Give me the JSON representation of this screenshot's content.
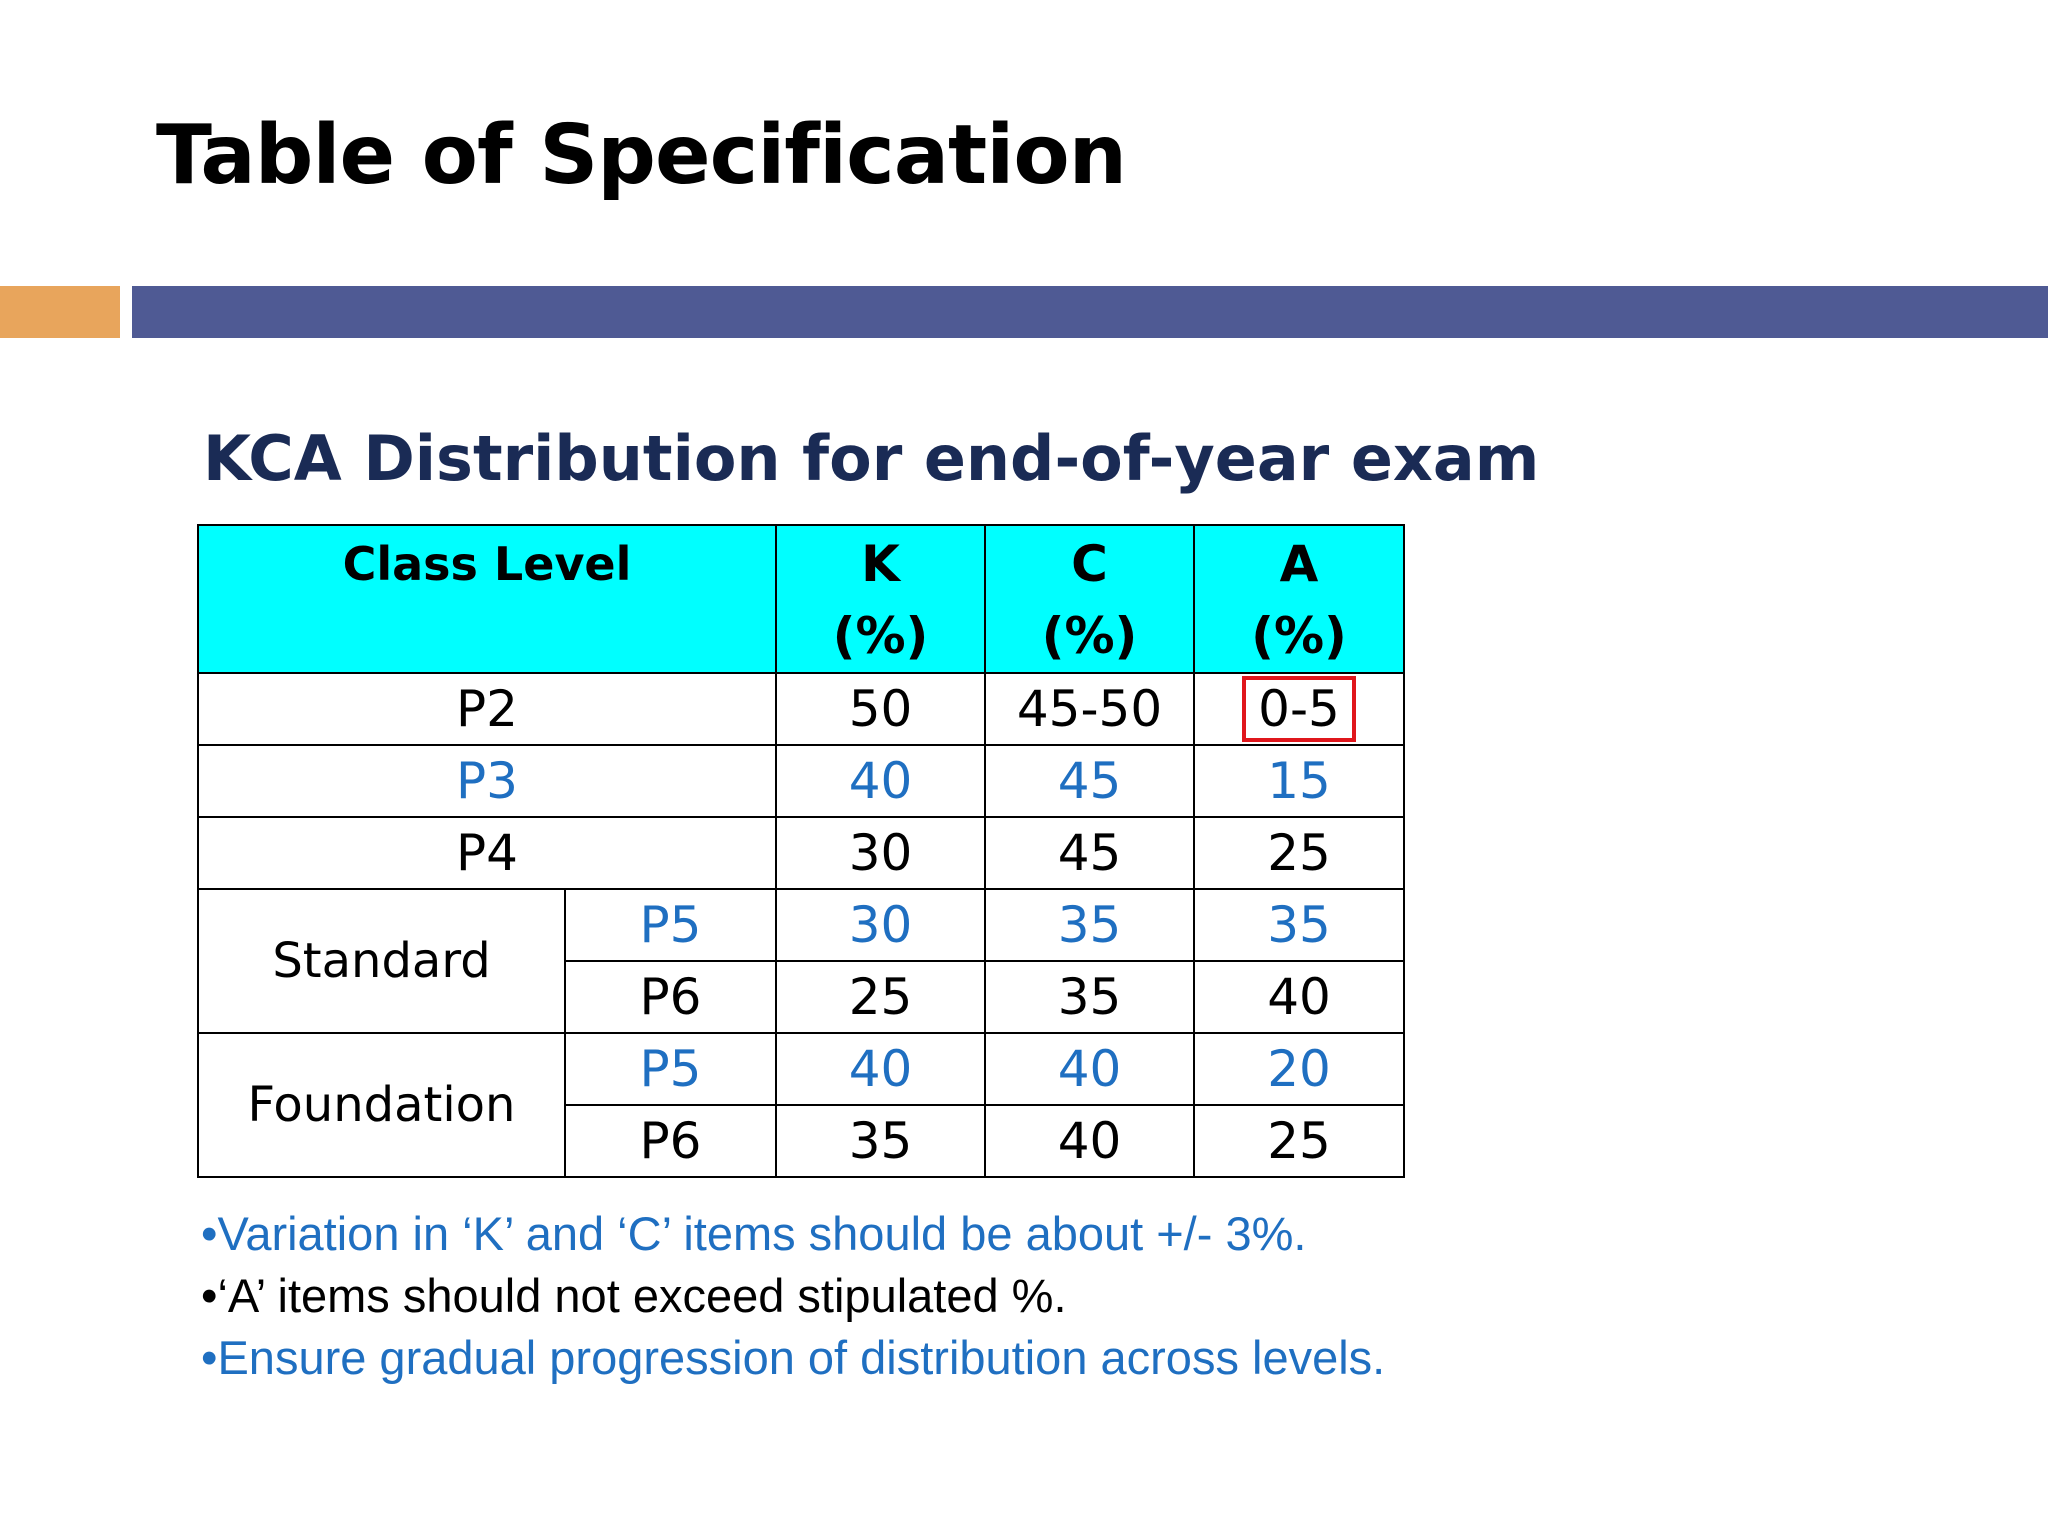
{
  "slide": {
    "title": "Table of Specification"
  },
  "colors": {
    "accent_bar": "#E8A55C",
    "main_bar": "#4F5A94",
    "table_header_bg": "#00FFFF",
    "blue_text": "#1F6FC1",
    "heading_navy": "#1A2B55",
    "highlight_border": "#E0161C"
  },
  "content": {
    "heading": "KCA Distribution for end-of-year exam",
    "table": {
      "headers": {
        "class_level": "Class Level",
        "k": "K",
        "c": "C",
        "a": "A",
        "unit": "(%)"
      },
      "rows": [
        {
          "level": "P2",
          "k": "50",
          "c": "45-50",
          "a": "0-5",
          "color": "black",
          "highlight_a": true
        },
        {
          "level": "P3",
          "k": "40",
          "c": "45",
          "a": "15",
          "color": "blue"
        },
        {
          "level": "P4",
          "k": "30",
          "c": "45",
          "a": "25",
          "color": "black"
        }
      ],
      "groups": [
        {
          "name": "Standard",
          "rows": [
            {
              "level": "P5",
              "k": "30",
              "c": "35",
              "a": "35",
              "color": "blue"
            },
            {
              "level": "P6",
              "k": "25",
              "c": "35",
              "a": "40",
              "color": "black"
            }
          ]
        },
        {
          "name": "Foundation",
          "rows": [
            {
              "level": "P5",
              "k": "40",
              "c": "40",
              "a": "20",
              "color": "blue"
            },
            {
              "level": "P6",
              "k": "35",
              "c": "40",
              "a": "25",
              "color": "black"
            }
          ]
        }
      ]
    },
    "notes": [
      {
        "text": "•Variation in ‘K’ and ‘C’ items should be about +/- 3%.",
        "color": "blue"
      },
      {
        "text": "•‘A’ items should not exceed stipulated %.",
        "color": "black"
      },
      {
        "text": "•Ensure gradual progression of distribution across levels.",
        "color": "blue"
      }
    ]
  }
}
